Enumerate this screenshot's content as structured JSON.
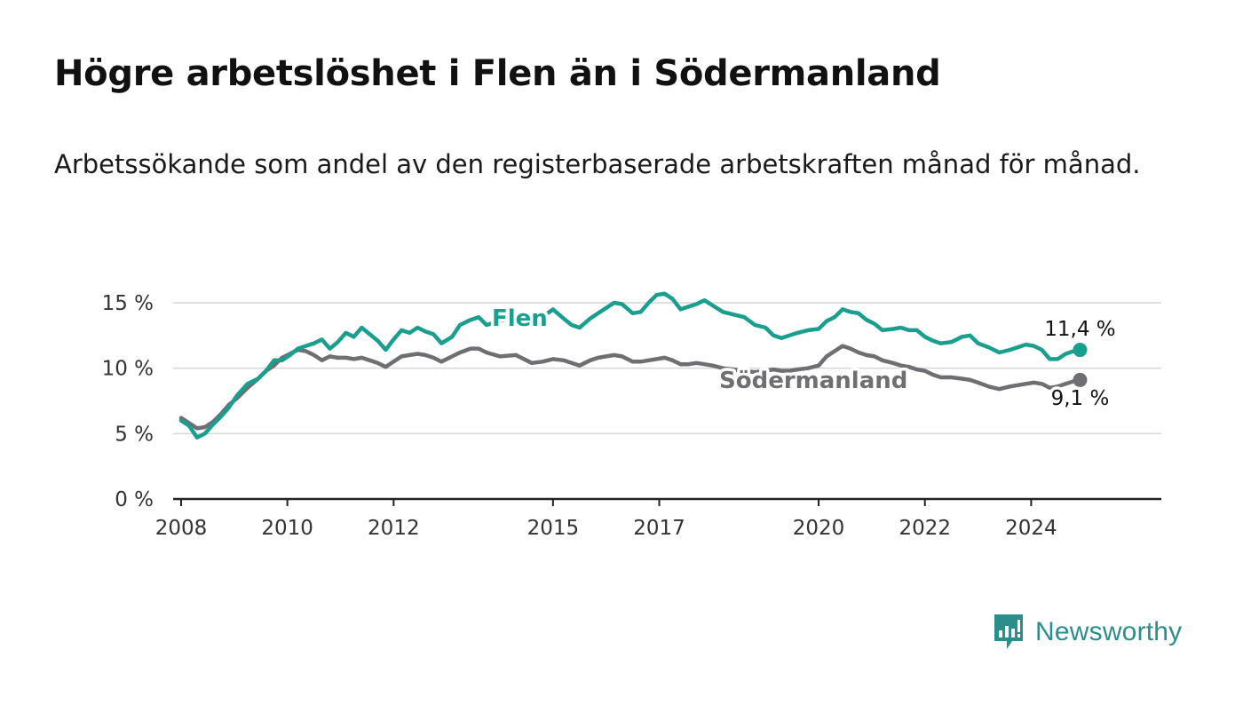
{
  "title": "Högre arbetslöshet i Flen än i Södermanland",
  "subtitle": "Arbetssökande som andel av den registerbaserade arbetskraften månad för månad.",
  "brand": {
    "name": "Newsworthy",
    "icon": "newsworthy-logo-icon",
    "color": "#2a8f8a"
  },
  "chart_data": {
    "type": "line",
    "title": "Högre arbetslöshet i Flen än i Södermanland",
    "xlabel": "",
    "ylabel": "",
    "xlim": [
      2007.85,
      2026.45
    ],
    "ylim": [
      0,
      15
    ],
    "x_ticks": [
      {
        "value": 2008,
        "label": "2008"
      },
      {
        "value": 2010,
        "label": "2010"
      },
      {
        "value": 2012,
        "label": "2012"
      },
      {
        "value": 2015,
        "label": "2015"
      },
      {
        "value": 2017,
        "label": "2017"
      },
      {
        "value": 2020,
        "label": "2020"
      },
      {
        "value": 2022,
        "label": "2022"
      },
      {
        "value": 2024,
        "label": "2024"
      }
    ],
    "y_ticks": [
      {
        "value": 0,
        "label": "0 %"
      },
      {
        "value": 5,
        "label": "5 %"
      },
      {
        "value": 10,
        "label": "10 %"
      },
      {
        "value": 15,
        "label": "15 %"
      }
    ],
    "grid": "horizontal",
    "series": [
      {
        "name": "Flen",
        "color": "#1a9e8e",
        "end_label": "11,4 %",
        "points": [
          [
            2008.0,
            6.0
          ],
          [
            2008.15,
            5.6
          ],
          [
            2008.3,
            4.7
          ],
          [
            2008.45,
            5.0
          ],
          [
            2008.6,
            5.7
          ],
          [
            2008.75,
            6.3
          ],
          [
            2008.9,
            7.0
          ],
          [
            2009.05,
            7.9
          ],
          [
            2009.25,
            8.8
          ],
          [
            2009.45,
            9.2
          ],
          [
            2009.6,
            9.8
          ],
          [
            2009.75,
            10.6
          ],
          [
            2009.9,
            10.6
          ],
          [
            2010.05,
            11.0
          ],
          [
            2010.2,
            11.5
          ],
          [
            2010.35,
            11.7
          ],
          [
            2010.5,
            11.9
          ],
          [
            2010.65,
            12.2
          ],
          [
            2010.8,
            11.5
          ],
          [
            2010.95,
            12.0
          ],
          [
            2011.1,
            12.7
          ],
          [
            2011.25,
            12.4
          ],
          [
            2011.4,
            13.1
          ],
          [
            2011.55,
            12.6
          ],
          [
            2011.7,
            12.1
          ],
          [
            2011.85,
            11.4
          ],
          [
            2012.0,
            12.2
          ],
          [
            2012.15,
            12.9
          ],
          [
            2012.3,
            12.7
          ],
          [
            2012.45,
            13.1
          ],
          [
            2012.6,
            12.8
          ],
          [
            2012.75,
            12.6
          ],
          [
            2012.9,
            11.9
          ],
          [
            2013.1,
            12.4
          ],
          [
            2013.25,
            13.3
          ],
          [
            2013.45,
            13.7
          ],
          [
            2013.6,
            13.9
          ],
          [
            2013.75,
            13.3
          ],
          [
            2014.0,
            13.6
          ],
          [
            2014.3,
            13.9
          ],
          [
            2014.6,
            13.6
          ],
          [
            2014.8,
            13.9
          ],
          [
            2015.0,
            14.5
          ],
          [
            2015.2,
            13.8
          ],
          [
            2015.35,
            13.3
          ],
          [
            2015.5,
            13.1
          ],
          [
            2015.7,
            13.8
          ],
          [
            2015.85,
            14.2
          ],
          [
            2016.0,
            14.6
          ],
          [
            2016.15,
            15.0
          ],
          [
            2016.3,
            14.9
          ],
          [
            2016.5,
            14.2
          ],
          [
            2016.65,
            14.3
          ],
          [
            2016.8,
            15.0
          ],
          [
            2016.95,
            15.6
          ],
          [
            2017.1,
            15.7
          ],
          [
            2017.25,
            15.3
          ],
          [
            2017.4,
            14.5
          ],
          [
            2017.55,
            14.7
          ],
          [
            2017.7,
            14.9
          ],
          [
            2017.85,
            15.2
          ],
          [
            2018.0,
            14.8
          ],
          [
            2018.2,
            14.3
          ],
          [
            2018.4,
            14.1
          ],
          [
            2018.6,
            13.9
          ],
          [
            2018.8,
            13.3
          ],
          [
            2019.0,
            13.1
          ],
          [
            2019.15,
            12.5
          ],
          [
            2019.3,
            12.3
          ],
          [
            2019.45,
            12.5
          ],
          [
            2019.6,
            12.7
          ],
          [
            2019.8,
            12.9
          ],
          [
            2020.0,
            13.0
          ],
          [
            2020.15,
            13.6
          ],
          [
            2020.3,
            13.9
          ],
          [
            2020.45,
            14.5
          ],
          [
            2020.6,
            14.3
          ],
          [
            2020.75,
            14.2
          ],
          [
            2020.9,
            13.7
          ],
          [
            2021.05,
            13.4
          ],
          [
            2021.2,
            12.9
          ],
          [
            2021.4,
            13.0
          ],
          [
            2021.55,
            13.1
          ],
          [
            2021.7,
            12.9
          ],
          [
            2021.85,
            12.9
          ],
          [
            2022.0,
            12.4
          ],
          [
            2022.15,
            12.1
          ],
          [
            2022.3,
            11.9
          ],
          [
            2022.5,
            12.0
          ],
          [
            2022.7,
            12.4
          ],
          [
            2022.85,
            12.5
          ],
          [
            2023.0,
            11.9
          ],
          [
            2023.2,
            11.6
          ],
          [
            2023.4,
            11.2
          ],
          [
            2023.6,
            11.4
          ],
          [
            2023.75,
            11.6
          ],
          [
            2023.9,
            11.8
          ],
          [
            2024.05,
            11.7
          ],
          [
            2024.2,
            11.4
          ],
          [
            2024.35,
            10.7
          ],
          [
            2024.5,
            10.7
          ],
          [
            2024.65,
            11.1
          ],
          [
            2024.8,
            11.3
          ],
          [
            2024.92,
            11.4
          ]
        ]
      },
      {
        "name": "Södermanland",
        "color": "#6e6e73",
        "end_label": "9,1 %",
        "points": [
          [
            2008.0,
            6.2
          ],
          [
            2008.15,
            5.8
          ],
          [
            2008.3,
            5.4
          ],
          [
            2008.45,
            5.5
          ],
          [
            2008.6,
            5.9
          ],
          [
            2008.75,
            6.5
          ],
          [
            2008.9,
            7.2
          ],
          [
            2009.05,
            7.7
          ],
          [
            2009.25,
            8.5
          ],
          [
            2009.45,
            9.2
          ],
          [
            2009.6,
            9.8
          ],
          [
            2009.75,
            10.2
          ],
          [
            2009.9,
            10.8
          ],
          [
            2010.05,
            11.1
          ],
          [
            2010.2,
            11.4
          ],
          [
            2010.35,
            11.3
          ],
          [
            2010.5,
            11.0
          ],
          [
            2010.65,
            10.6
          ],
          [
            2010.8,
            10.9
          ],
          [
            2010.95,
            10.8
          ],
          [
            2011.1,
            10.8
          ],
          [
            2011.25,
            10.7
          ],
          [
            2011.4,
            10.8
          ],
          [
            2011.55,
            10.6
          ],
          [
            2011.7,
            10.4
          ],
          [
            2011.85,
            10.1
          ],
          [
            2012.0,
            10.5
          ],
          [
            2012.15,
            10.9
          ],
          [
            2012.3,
            11.0
          ],
          [
            2012.45,
            11.1
          ],
          [
            2012.6,
            11.0
          ],
          [
            2012.75,
            10.8
          ],
          [
            2012.9,
            10.5
          ],
          [
            2013.1,
            10.9
          ],
          [
            2013.25,
            11.2
          ],
          [
            2013.45,
            11.5
          ],
          [
            2013.6,
            11.5
          ],
          [
            2013.75,
            11.2
          ],
          [
            2014.0,
            10.9
          ],
          [
            2014.3,
            11.0
          ],
          [
            2014.6,
            10.4
          ],
          [
            2014.8,
            10.5
          ],
          [
            2015.0,
            10.7
          ],
          [
            2015.2,
            10.6
          ],
          [
            2015.35,
            10.4
          ],
          [
            2015.5,
            10.2
          ],
          [
            2015.7,
            10.6
          ],
          [
            2015.85,
            10.8
          ],
          [
            2016.0,
            10.9
          ],
          [
            2016.15,
            11.0
          ],
          [
            2016.3,
            10.9
          ],
          [
            2016.5,
            10.5
          ],
          [
            2016.65,
            10.5
          ],
          [
            2016.8,
            10.6
          ],
          [
            2016.95,
            10.7
          ],
          [
            2017.1,
            10.8
          ],
          [
            2017.25,
            10.6
          ],
          [
            2017.4,
            10.3
          ],
          [
            2017.55,
            10.3
          ],
          [
            2017.7,
            10.4
          ],
          [
            2017.85,
            10.3
          ],
          [
            2018.0,
            10.2
          ],
          [
            2018.2,
            10.0
          ],
          [
            2018.4,
            9.9
          ],
          [
            2018.6,
            9.8
          ],
          [
            2018.8,
            9.7
          ],
          [
            2019.0,
            9.8
          ],
          [
            2019.15,
            9.9
          ],
          [
            2019.3,
            9.8
          ],
          [
            2019.45,
            9.8
          ],
          [
            2019.6,
            9.9
          ],
          [
            2019.8,
            10.0
          ],
          [
            2020.0,
            10.2
          ],
          [
            2020.15,
            10.9
          ],
          [
            2020.3,
            11.3
          ],
          [
            2020.45,
            11.7
          ],
          [
            2020.6,
            11.5
          ],
          [
            2020.75,
            11.2
          ],
          [
            2020.9,
            11.0
          ],
          [
            2021.05,
            10.9
          ],
          [
            2021.2,
            10.6
          ],
          [
            2021.4,
            10.4
          ],
          [
            2021.55,
            10.2
          ],
          [
            2021.7,
            10.1
          ],
          [
            2021.85,
            9.9
          ],
          [
            2022.0,
            9.8
          ],
          [
            2022.15,
            9.5
          ],
          [
            2022.3,
            9.3
          ],
          [
            2022.5,
            9.3
          ],
          [
            2022.7,
            9.2
          ],
          [
            2022.85,
            9.1
          ],
          [
            2023.0,
            8.9
          ],
          [
            2023.2,
            8.6
          ],
          [
            2023.4,
            8.4
          ],
          [
            2023.6,
            8.6
          ],
          [
            2023.75,
            8.7
          ],
          [
            2023.9,
            8.8
          ],
          [
            2024.05,
            8.9
          ],
          [
            2024.2,
            8.8
          ],
          [
            2024.35,
            8.5
          ],
          [
            2024.5,
            8.6
          ],
          [
            2024.65,
            8.8
          ],
          [
            2024.8,
            9.0
          ],
          [
            2024.92,
            9.1
          ]
        ]
      }
    ]
  }
}
